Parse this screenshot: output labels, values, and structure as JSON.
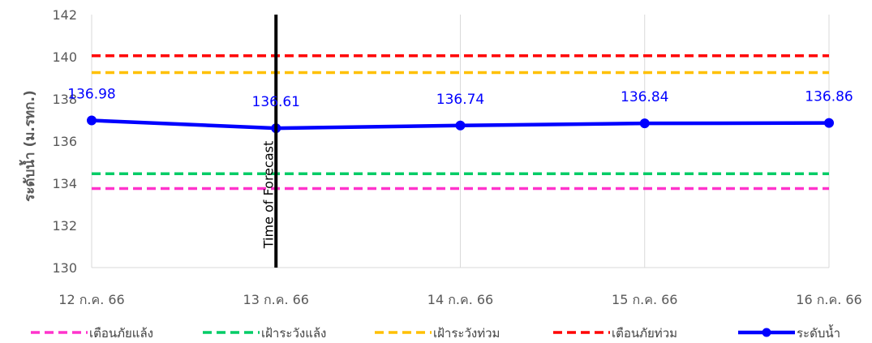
{
  "chart_data": {
    "type": "line",
    "ylabel": "ระดับน้ำ (ม.รทก.)",
    "ylim": [
      130,
      142
    ],
    "yticks": [
      "130",
      "132",
      "134",
      "136",
      "138",
      "140",
      "142"
    ],
    "categories": [
      "12 ก.ค. 66",
      "13 ก.ค. 66",
      "14 ก.ค. 66",
      "15 ก.ค. 66",
      "16 ก.ค. 66"
    ],
    "grid": "vertical",
    "legend_position": "bottom",
    "forecast_marker": {
      "category_index": 1,
      "label": "Time of Forecast"
    },
    "series": [
      {
        "name": "เตือนภัยแล้ง",
        "style": "dashed",
        "color": "#ff33cc",
        "values": [
          133.75,
          133.75,
          133.75,
          133.75,
          133.75
        ]
      },
      {
        "name": "เฝ้าระวังแล้ง",
        "style": "dashed",
        "color": "#00cc66",
        "values": [
          134.45,
          134.45,
          134.45,
          134.45,
          134.45
        ]
      },
      {
        "name": "เฝ้าระวังท่วม",
        "style": "dashed",
        "color": "#ffc000",
        "values": [
          139.25,
          139.25,
          139.25,
          139.25,
          139.25
        ]
      },
      {
        "name": "เตือนภัยท่วม",
        "style": "dashed",
        "color": "#ff0000",
        "values": [
          140.05,
          140.05,
          140.05,
          140.05,
          140.05
        ]
      },
      {
        "name": "ระดับน้ำ",
        "style": "solid-markers",
        "color": "#0000ff",
        "values": [
          136.98,
          136.61,
          136.74,
          136.84,
          136.86
        ],
        "data_labels": [
          "136.98",
          "136.61",
          "136.74",
          "136.84",
          "136.86"
        ]
      }
    ]
  }
}
